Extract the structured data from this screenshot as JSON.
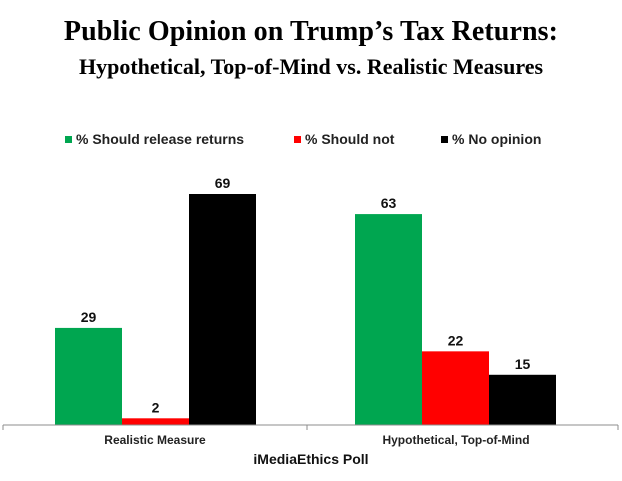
{
  "chart_data": {
    "type": "bar",
    "title": "Public Opinion on Trump’s Tax Returns:",
    "subtitle": "Hypothetical, Top-of-Mind vs. Realistic Measures",
    "xlabel": "iMediaEthics Poll",
    "ylabel": "",
    "categories": [
      "Realistic Measure",
      "Hypothetical, Top-of-Mind"
    ],
    "series": [
      {
        "name": "% Should release returns",
        "color": "#00a650",
        "values": [
          29,
          63
        ]
      },
      {
        "name": "% Should not",
        "color": "#ff0000",
        "values": [
          2,
          22
        ]
      },
      {
        "name": "% No opinion",
        "color": "#000000",
        "values": [
          69,
          15
        ]
      }
    ],
    "ylim": [
      0,
      69
    ],
    "grid": false,
    "legend_position": "top",
    "data_labels": true
  }
}
